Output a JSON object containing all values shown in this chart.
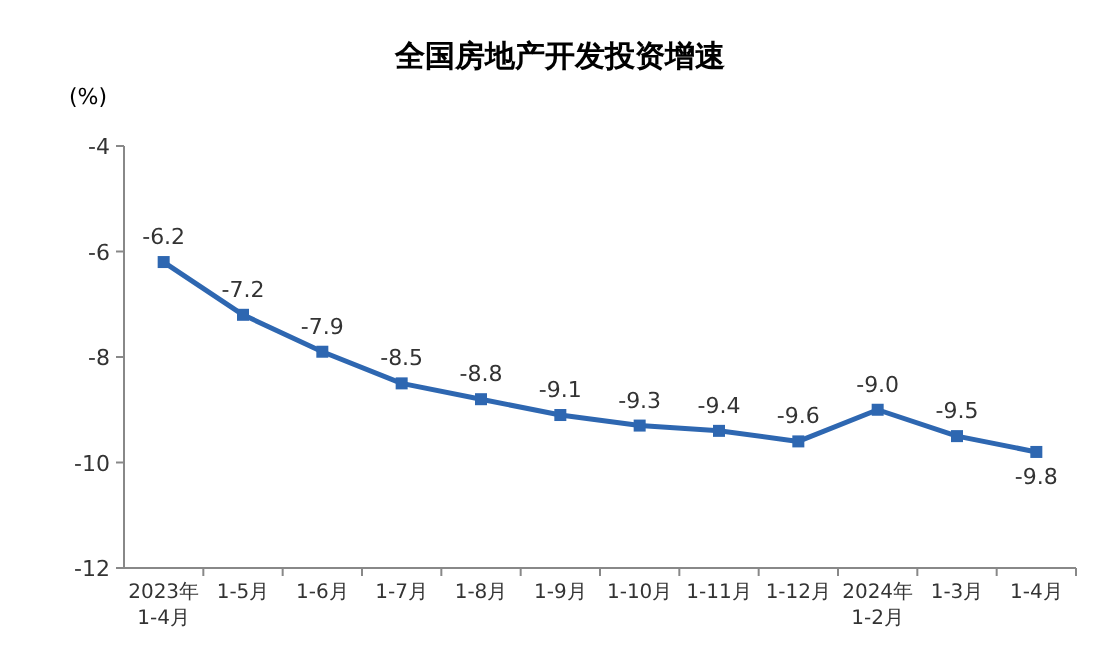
{
  "chart_data": {
    "type": "line",
    "title": "全国房地产开发投资增速",
    "ylabel": "(%)",
    "categories": [
      "2023年\n1-4月",
      "1-5月",
      "1-6月",
      "1-7月",
      "1-8月",
      "1-9月",
      "1-10月",
      "1-11月",
      "1-12月",
      "2024年\n1-2月",
      "1-3月",
      "1-4月"
    ],
    "series": [
      {
        "color": "#2e67b1",
        "values": [
          -6.2,
          -7.2,
          -7.9,
          -8.5,
          -8.8,
          -9.1,
          -9.3,
          -9.4,
          -9.6,
          -9.0,
          -9.5,
          -9.8
        ],
        "value_labels": [
          "-6.2",
          "-7.2",
          "-7.9",
          "-8.5",
          "-8.8",
          "-9.1",
          "-9.3",
          "-9.4",
          "-9.6",
          "-9.0",
          "-9.5",
          "-9.8"
        ]
      }
    ],
    "ylim": [
      -12,
      -4
    ],
    "yticks": [
      -4,
      -6,
      -8,
      -10,
      -12
    ],
    "grid": false,
    "marker": "square",
    "line_style": "solid"
  }
}
